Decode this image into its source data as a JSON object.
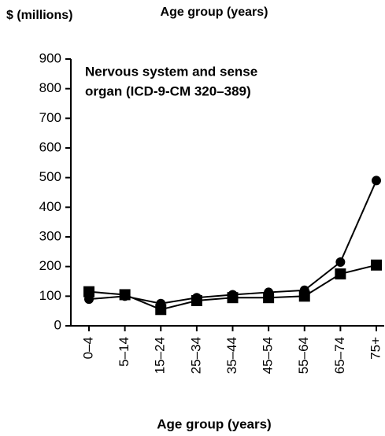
{
  "chart_data": {
    "type": "line",
    "ylabel": "$ (millions)",
    "title": "Age group (years)",
    "xlabel": "Age group (years)",
    "annotation": [
      "Nervous system and sense",
      "organ (ICD-9-CM 320–389)"
    ],
    "categories": [
      "0–4",
      "5–14",
      "15–24",
      "25–34",
      "35–44",
      "45–54",
      "55–64",
      "65–74",
      "75+"
    ],
    "series": [
      {
        "color": "#000000",
        "marker": "circle",
        "values": [
          90,
          100,
          75,
          95,
          105,
          113,
          120,
          215,
          490
        ]
      },
      {
        "color": "#000000",
        "marker": "square",
        "values": [
          115,
          105,
          55,
          85,
          95,
          95,
          100,
          175,
          205
        ]
      }
    ],
    "ylim": [
      0,
      900
    ],
    "yticks": [
      0,
      100,
      200,
      300,
      400,
      500,
      600,
      700,
      800,
      900
    ],
    "grid": false
  }
}
